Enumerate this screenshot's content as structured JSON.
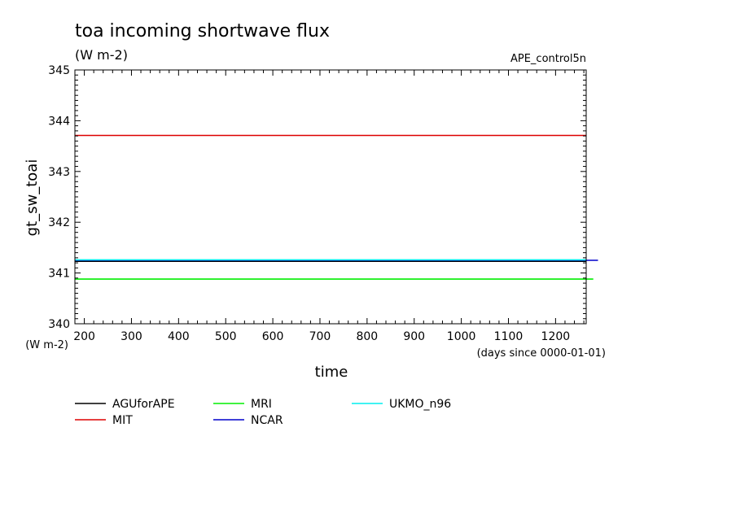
{
  "chart_data": {
    "type": "line",
    "title": "toa incoming shortwave flux",
    "units": "(W m-2)",
    "experiment": "APE_control5n",
    "ylabel": "gt_sw_toai",
    "yunits": "(W m-2)",
    "xlabel": "time",
    "xunits": "(days since 0000-01-01)",
    "xlim": [
      180,
      1265
    ],
    "ylim": [
      340,
      345
    ],
    "xticks": [
      200,
      300,
      400,
      500,
      600,
      700,
      800,
      900,
      1000,
      1100,
      1200
    ],
    "yticks": [
      340,
      341,
      342,
      343,
      344,
      345
    ],
    "grid": false,
    "legend_position": "bottom",
    "series": [
      {
        "name": "AGUforAPE",
        "color": "#000000",
        "x": [
          180,
          1265
        ],
        "values": [
          341.23,
          341.23
        ]
      },
      {
        "name": "MIT",
        "color": "#dd0000",
        "x": [
          180,
          1265
        ],
        "values": [
          343.71,
          343.71
        ]
      },
      {
        "name": "MRI",
        "color": "#00ee00",
        "x": [
          180,
          1280
        ],
        "values": [
          340.88,
          340.88
        ]
      },
      {
        "name": "NCAR",
        "color": "#0000cc",
        "x": [
          180,
          1290
        ],
        "values": [
          341.25,
          341.25
        ]
      },
      {
        "name": "UKMO_n96",
        "color": "#00eeee",
        "x": [
          180,
          1265
        ],
        "values": [
          341.26,
          341.26
        ]
      }
    ]
  }
}
